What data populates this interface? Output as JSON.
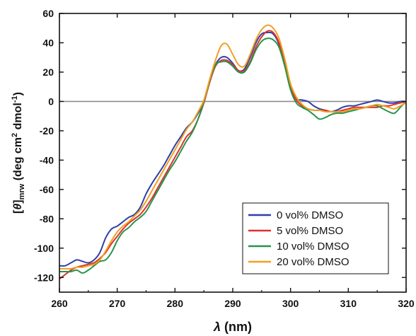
{
  "chart_data": {
    "type": "line",
    "title": "",
    "xlabel": {
      "symbol": "λ",
      "rest": " (nm)"
    },
    "ylabel": {
      "open": "[",
      "theta": "θ",
      "close": "]",
      "sub": "mrw",
      "unit_a": " (deg cm",
      "sup2": "2",
      "unit_b": " dmol",
      "supm1": "-1",
      "unit_c": ")"
    },
    "xlim": [
      260,
      320
    ],
    "ylim": [
      -130,
      60
    ],
    "xticks": [
      260,
      270,
      280,
      290,
      300,
      310,
      320
    ],
    "yticks": [
      -120,
      -100,
      -80,
      -60,
      -40,
      -20,
      0,
      20,
      40,
      60
    ],
    "zero_line": true,
    "legend_position": "bottom-right",
    "series": [
      {
        "name": "0 vol% DMSO",
        "color": "#2e3fa8",
        "x": [
          260,
          261,
          262,
          263,
          264,
          265,
          266,
          267,
          268,
          269,
          270,
          271,
          272,
          273,
          274,
          275,
          276,
          277,
          278,
          279,
          280,
          281,
          282,
          283,
          284,
          285,
          286,
          287,
          288,
          289,
          290,
          291,
          292,
          293,
          294,
          295,
          296,
          297,
          298,
          299,
          300,
          301,
          302,
          303,
          304,
          305,
          306,
          307,
          308,
          309,
          310,
          311,
          312,
          313,
          314,
          315,
          316,
          317,
          318,
          319,
          320
        ],
        "y": [
          -112,
          -112,
          -110,
          -108,
          -109,
          -110,
          -108,
          -103,
          -93,
          -87,
          -85,
          -82,
          -79,
          -77,
          -72,
          -63,
          -56,
          -50,
          -44,
          -37,
          -30,
          -24,
          -18,
          -14,
          -8,
          0,
          13,
          25,
          30,
          30,
          26,
          21,
          22,
          30,
          40,
          46,
          47,
          46,
          39,
          25,
          10,
          2,
          1,
          0,
          -3,
          -5,
          -6,
          -7,
          -6,
          -4,
          -3,
          -3,
          -2,
          -1,
          0,
          1,
          0,
          -1,
          -1,
          0,
          0
        ]
      },
      {
        "name": "5 vol% DMSO",
        "color": "#e03030",
        "x": [
          260,
          261,
          262,
          263,
          264,
          265,
          266,
          267,
          268,
          269,
          270,
          271,
          272,
          273,
          274,
          275,
          276,
          277,
          278,
          279,
          280,
          281,
          282,
          283,
          284,
          285,
          286,
          287,
          288,
          289,
          290,
          291,
          292,
          293,
          294,
          295,
          296,
          297,
          298,
          299,
          300,
          301,
          302,
          303,
          304,
          305,
          306,
          307,
          308,
          309,
          310,
          311,
          312,
          313,
          314,
          315,
          316,
          317,
          318,
          319,
          320
        ],
        "y": [
          -121,
          -118,
          -115,
          -113,
          -112,
          -111,
          -110,
          -107,
          -103,
          -97,
          -92,
          -87,
          -83,
          -80,
          -77,
          -72,
          -66,
          -59,
          -52,
          -45,
          -38,
          -31,
          -24,
          -20,
          -12,
          -1,
          13,
          24,
          28,
          28,
          25,
          21,
          21,
          27,
          37,
          44,
          48,
          47,
          40,
          26,
          10,
          1,
          -3,
          -5,
          -6,
          -6,
          -6,
          -7,
          -7,
          -6,
          -5,
          -4,
          -4,
          -4,
          -4,
          -4,
          -3,
          -3,
          -2,
          -1,
          0
        ]
      },
      {
        "name": "10 vol% DMSO",
        "color": "#27944a",
        "x": [
          260,
          261,
          262,
          263,
          264,
          265,
          266,
          267,
          268,
          269,
          270,
          271,
          272,
          273,
          274,
          275,
          276,
          277,
          278,
          279,
          280,
          281,
          282,
          283,
          284,
          285,
          286,
          287,
          288,
          289,
          290,
          291,
          292,
          293,
          294,
          295,
          296,
          297,
          298,
          299,
          300,
          301,
          302,
          303,
          304,
          305,
          306,
          307,
          308,
          309,
          310,
          311,
          312,
          313,
          314,
          315,
          316,
          317,
          318,
          319,
          320
        ],
        "y": [
          -116,
          -116,
          -116,
          -115,
          -117,
          -115,
          -112,
          -109,
          -108,
          -103,
          -95,
          -89,
          -86,
          -82,
          -79,
          -75,
          -68,
          -61,
          -54,
          -47,
          -41,
          -34,
          -27,
          -21,
          -12,
          0,
          14,
          25,
          27,
          27,
          24,
          20,
          20,
          26,
          35,
          41,
          43,
          42,
          37,
          24,
          8,
          -1,
          -4,
          -6,
          -9,
          -12,
          -11,
          -9,
          -8,
          -8,
          -7,
          -6,
          -5,
          -4,
          -3,
          -3,
          -5,
          -7,
          -8,
          -4,
          0
        ]
      },
      {
        "name": "20 vol% DMSO",
        "color": "#f0a020",
        "x": [
          260,
          261,
          262,
          263,
          264,
          265,
          266,
          267,
          268,
          269,
          270,
          271,
          272,
          273,
          274,
          275,
          276,
          277,
          278,
          279,
          280,
          281,
          282,
          283,
          284,
          285,
          286,
          287,
          288,
          289,
          290,
          291,
          292,
          293,
          294,
          295,
          296,
          297,
          298,
          299,
          300,
          301,
          302,
          303,
          304,
          305,
          306,
          307,
          308,
          309,
          310,
          311,
          312,
          313,
          314,
          315,
          316,
          317,
          318,
          319,
          320
        ],
        "y": [
          -114,
          -114,
          -114,
          -113,
          -113,
          -112,
          -111,
          -108,
          -102,
          -95,
          -89,
          -85,
          -82,
          -78,
          -74,
          -68,
          -61,
          -54,
          -47,
          -40,
          -33,
          -26,
          -19,
          -14,
          -7,
          1,
          15,
          28,
          38,
          39,
          32,
          25,
          24,
          32,
          42,
          49,
          52,
          50,
          43,
          29,
          12,
          3,
          -2,
          -5,
          -6,
          -6,
          -7,
          -7,
          -7,
          -7,
          -6,
          -5,
          -5,
          -4,
          -3,
          -2,
          -3,
          -4,
          -5,
          -3,
          -1
        ]
      }
    ]
  }
}
